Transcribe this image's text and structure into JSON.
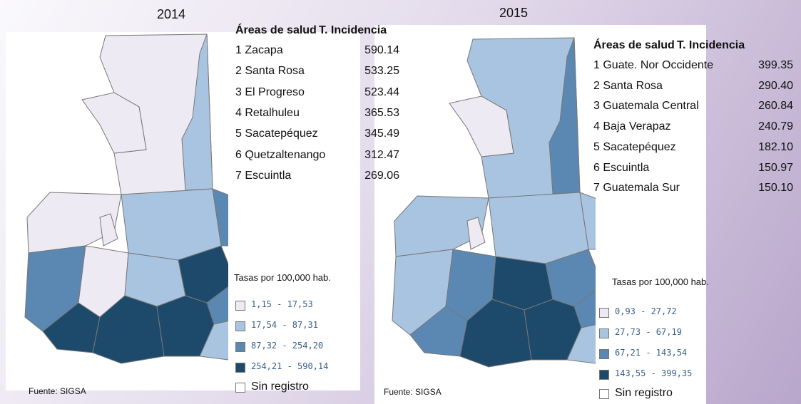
{
  "panels": [
    {
      "year": "2014",
      "header_area": "Áreas de salud",
      "header_rate": "T. Incidencia",
      "rows": [
        [
          "1 Zacapa",
          "590.14"
        ],
        [
          "2 Santa Rosa",
          "533.25"
        ],
        [
          "3 El Progreso",
          "523.44"
        ],
        [
          "4 Retalhuleu",
          "365.53"
        ],
        [
          "5 Sacatepéquez",
          "345.49"
        ],
        [
          "6 Quetzaltenango",
          "312.47"
        ],
        [
          "7 Escuintla",
          "269.06"
        ]
      ],
      "legend_title": "Tasas por 100,000 hab.",
      "legend": [
        {
          "label": "1,15 - 17,53",
          "color": "#eeeaf3"
        },
        {
          "label": "17,54 - 87,31",
          "color": "#a9c4e0"
        },
        {
          "label": "87,32 - 254,20",
          "color": "#5b88b2"
        },
        {
          "label": "254,21 - 590,14",
          "color": "#1d4a6b"
        }
      ],
      "no_data": "Sin registro",
      "source": "Fuente: SIGSA"
    },
    {
      "year": "2015",
      "header_area": "Áreas de salud",
      "header_rate": "T. Incidencia",
      "rows": [
        [
          "1 Guate. Nor Occidente",
          "399.35"
        ],
        [
          "2 Santa Rosa",
          "290.40"
        ],
        [
          "3 Guatemala Central",
          "260.84"
        ],
        [
          "4 Baja Verapaz",
          "240.79"
        ],
        [
          "5 Sacatepéquez",
          "182.10"
        ],
        [
          "6 Escuintla",
          "150.97"
        ],
        [
          "7 Guatemala Sur",
          "150.10"
        ]
      ],
      "legend_title": "Tasas por 100,000 hab.",
      "legend": [
        {
          "label": "0,93 - 27,72",
          "color": "#eeeaf3"
        },
        {
          "label": "27,73 - 67,19",
          "color": "#a9c4e0"
        },
        {
          "label": "67,21 - 143,54",
          "color": "#5b88b2"
        },
        {
          "label": "143,55 - 399,35",
          "color": "#1d4a6b"
        }
      ],
      "no_data": "Sin registro",
      "source": "Fuente: SIGSA"
    }
  ]
}
